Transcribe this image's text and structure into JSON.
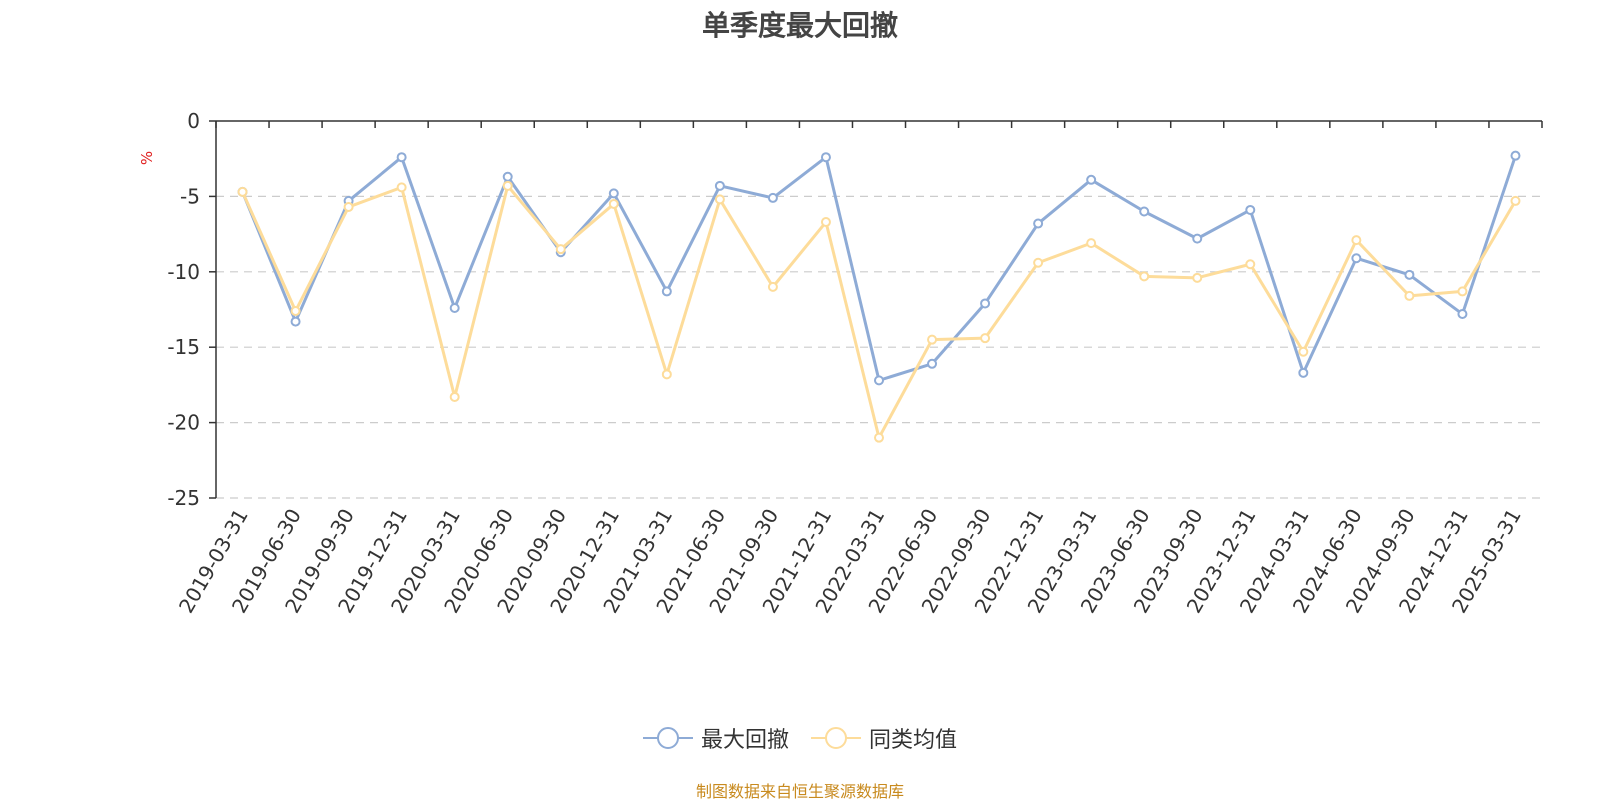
{
  "chart_data": {
    "type": "line",
    "title": "单季度最大回撤",
    "ylabel": "%",
    "ylim": [
      -25,
      0
    ],
    "yticks": [
      0,
      -5,
      -10,
      -15,
      -20,
      -25
    ],
    "grid": true,
    "legend_position": "bottom",
    "categories": [
      "2019-03-31",
      "2019-06-30",
      "2019-09-30",
      "2019-12-31",
      "2020-03-31",
      "2020-06-30",
      "2020-09-30",
      "2020-12-31",
      "2021-03-31",
      "2021-06-30",
      "2021-09-30",
      "2021-12-31",
      "2022-03-31",
      "2022-06-30",
      "2022-09-30",
      "2022-12-31",
      "2023-03-31",
      "2023-06-30",
      "2023-09-30",
      "2023-12-31",
      "2024-03-31",
      "2024-06-30",
      "2024-09-30",
      "2024-12-31",
      "2025-03-31"
    ],
    "series": [
      {
        "name": "最大回撤",
        "color": "#8eabd6",
        "values": [
          -4.7,
          -13.3,
          -5.3,
          -2.4,
          -12.4,
          -3.7,
          -8.7,
          -4.8,
          -11.3,
          -4.3,
          -5.1,
          -2.4,
          -17.2,
          -16.1,
          -12.1,
          -6.8,
          -3.9,
          -6.0,
          -7.8,
          -5.9,
          -16.7,
          -9.1,
          -10.2,
          -12.8,
          -2.3
        ]
      },
      {
        "name": "同类均值",
        "color": "#fddc9a",
        "values": [
          -4.7,
          -12.6,
          -5.7,
          -4.4,
          -18.3,
          -4.3,
          -8.5,
          -5.5,
          -16.8,
          -5.2,
          -11.0,
          -6.7,
          -21.0,
          -14.5,
          -14.4,
          -9.4,
          -8.1,
          -10.3,
          -10.4,
          -9.5,
          -15.3,
          -7.9,
          -11.6,
          -11.3,
          -5.3
        ]
      }
    ]
  },
  "footer": {
    "source": "制图数据来自恒生聚源数据库"
  }
}
